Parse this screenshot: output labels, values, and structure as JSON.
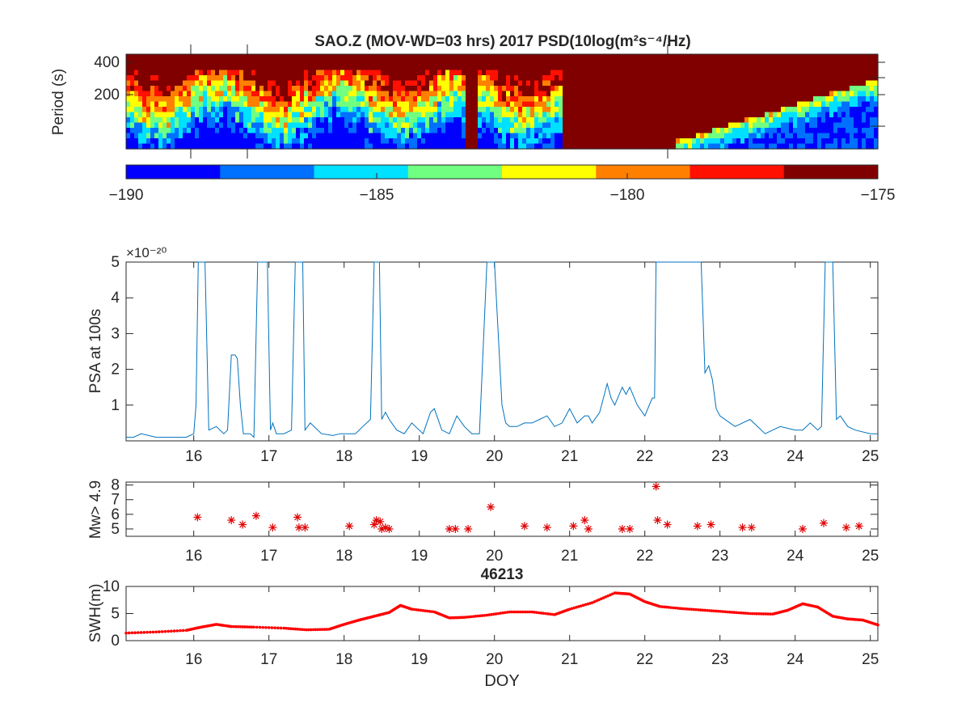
{
  "figure": {
    "colors": {
      "axis": "#262626",
      "psa_line": "#0072bd",
      "marker": "#e00000",
      "swh": "#ff0000",
      "spec_top": "#800000"
    },
    "jet_colors": [
      "#0000ff",
      "#0070ff",
      "#00e0ff",
      "#70ff80",
      "#ffff00",
      "#ff8000",
      "#ff1000",
      "#800000"
    ]
  },
  "chart_data": [
    {
      "id": "spectrogram",
      "type": "heatmap",
      "title": "SAO.Z (MOV-WD=03 hrs) 2017 PSD(10log(m²s⁻⁴/Hz)",
      "ylabel": "Period (s)",
      "yticks": [
        200,
        400
      ],
      "xlim": [
        15.1,
        25.1
      ],
      "color_range": [
        -190,
        -175
      ],
      "colorbar_ticks": [
        -190,
        -185,
        -180,
        -175
      ],
      "colormap": "jet-8-levels",
      "description_regions": [
        {
          "from": 15.1,
          "to": 19.6,
          "state": "mixed"
        },
        {
          "from": 19.6,
          "to": 19.8,
          "state": "high"
        },
        {
          "from": 19.8,
          "to": 20.9,
          "state": "mixed"
        },
        {
          "from": 20.9,
          "to": 22.4,
          "state": "high"
        },
        {
          "from": 22.4,
          "to": 25.1,
          "state": "rising-low"
        }
      ]
    },
    {
      "id": "psa",
      "type": "line",
      "ylabel": "PSA at 100s",
      "exponent_label": "×10⁻²⁰",
      "xlim": [
        15.1,
        25.1
      ],
      "ylim": [
        0,
        5
      ],
      "yticks": [
        1,
        2,
        3,
        4,
        5
      ],
      "xticks": [
        16,
        17,
        18,
        19,
        20,
        21,
        22,
        23,
        24,
        25
      ],
      "x": [
        15.1,
        15.2,
        15.3,
        15.5,
        15.7,
        15.9,
        16.0,
        16.03,
        16.06,
        16.1,
        16.15,
        16.2,
        16.3,
        16.4,
        16.45,
        16.5,
        16.55,
        16.58,
        16.62,
        16.66,
        16.7,
        16.75,
        16.8,
        16.85,
        16.88,
        16.92,
        16.98,
        17.02,
        17.05,
        17.1,
        17.2,
        17.3,
        17.35,
        17.4,
        17.45,
        17.48,
        17.55,
        17.7,
        17.85,
        17.95,
        18.05,
        18.15,
        18.25,
        18.35,
        18.4,
        18.43,
        18.47,
        18.5,
        18.55,
        18.6,
        18.7,
        18.8,
        18.9,
        18.95,
        19.05,
        19.15,
        19.2,
        19.3,
        19.4,
        19.5,
        19.6,
        19.7,
        19.8,
        19.9,
        19.95,
        20.0,
        20.1,
        20.15,
        20.2,
        20.3,
        20.4,
        20.5,
        20.6,
        20.7,
        20.8,
        20.9,
        21.0,
        21.1,
        21.2,
        21.25,
        21.3,
        21.4,
        21.5,
        21.55,
        21.6,
        21.7,
        21.75,
        21.8,
        21.9,
        22.0,
        22.1,
        22.13,
        22.15,
        22.2,
        22.4,
        22.6,
        22.75,
        22.8,
        22.85,
        22.9,
        22.95,
        23.0,
        23.2,
        23.4,
        23.5,
        23.6,
        23.8,
        24.0,
        24.1,
        24.2,
        24.3,
        24.35,
        24.4,
        24.45,
        24.5,
        24.55,
        24.6,
        24.7,
        24.8,
        25.0,
        25.1
      ],
      "values": [
        0.1,
        0.1,
        0.2,
        0.1,
        0.1,
        0.1,
        0.2,
        1.0,
        5,
        5,
        5,
        0.3,
        0.4,
        0.2,
        0.3,
        2.4,
        2.4,
        2.3,
        1.0,
        0.2,
        0.2,
        0.2,
        0.1,
        5,
        5,
        5,
        5,
        0.3,
        0.5,
        0.2,
        0.2,
        0.3,
        5,
        5,
        5,
        0.3,
        0.5,
        0.2,
        0.15,
        0.2,
        0.2,
        0.2,
        0.4,
        0.6,
        5,
        5,
        5,
        0.6,
        0.8,
        0.6,
        0.3,
        0.2,
        0.5,
        0.4,
        0.2,
        0.8,
        0.9,
        0.3,
        0.2,
        0.7,
        0.4,
        0.2,
        0.2,
        5,
        5,
        5,
        1.0,
        0.5,
        0.4,
        0.4,
        0.5,
        0.5,
        0.6,
        0.7,
        0.4,
        0.5,
        0.9,
        0.5,
        0.7,
        0.7,
        0.5,
        0.8,
        1.6,
        1.2,
        1.0,
        1.5,
        1.3,
        1.5,
        1.0,
        0.7,
        1.2,
        1.2,
        5,
        5,
        5,
        5,
        5,
        1.9,
        2.1,
        1.7,
        0.9,
        0.7,
        0.4,
        0.6,
        0.4,
        0.2,
        0.4,
        0.3,
        0.3,
        0.5,
        0.3,
        0.4,
        5,
        5,
        5,
        0.6,
        0.7,
        0.4,
        0.3,
        0.2,
        0.2
      ]
    },
    {
      "id": "earthquakes",
      "type": "scatter",
      "ylabel": "Mw> 4.9",
      "xlim": [
        15.1,
        25.1
      ],
      "ylim": [
        4.5,
        8.2
      ],
      "yticks": [
        5,
        6,
        7,
        8
      ],
      "xticks": [
        16,
        17,
        18,
        19,
        20,
        21,
        22,
        23,
        24,
        25
      ],
      "x": [
        16.05,
        16.5,
        16.65,
        16.83,
        17.05,
        17.38,
        17.4,
        17.48,
        18.07,
        18.4,
        18.43,
        18.48,
        18.5,
        18.55,
        18.6,
        19.4,
        19.48,
        19.65,
        19.95,
        20.4,
        20.7,
        21.05,
        21.2,
        21.25,
        21.7,
        21.8,
        22.15,
        22.17,
        22.3,
        22.7,
        22.88,
        23.3,
        23.42,
        24.1,
        24.38,
        24.68,
        24.85
      ],
      "values": [
        5.8,
        5.6,
        5.3,
        5.9,
        5.1,
        5.8,
        5.1,
        5.1,
        5.2,
        5.3,
        5.6,
        5.5,
        5.0,
        5.1,
        5.0,
        5.0,
        5.0,
        5.0,
        6.5,
        5.2,
        5.1,
        5.2,
        5.6,
        5.0,
        5.0,
        5.0,
        7.9,
        5.6,
        5.3,
        5.2,
        5.3,
        5.1,
        5.1,
        5.0,
        5.4,
        5.1,
        5.2
      ]
    },
    {
      "id": "swh",
      "type": "line",
      "title": "46213",
      "ylabel": "SWH(m)",
      "xlabel": "DOY",
      "xlim": [
        15.1,
        25.1
      ],
      "ylim": [
        0,
        10
      ],
      "yticks": [
        0,
        5,
        10
      ],
      "xticks": [
        16,
        17,
        18,
        19,
        20,
        21,
        22,
        23,
        24,
        25
      ],
      "x": [
        15.1,
        15.5,
        15.9,
        16.1,
        16.3,
        16.5,
        16.8,
        17.2,
        17.5,
        17.8,
        18.0,
        18.2,
        18.4,
        18.6,
        18.75,
        18.9,
        19.2,
        19.4,
        19.6,
        19.9,
        20.2,
        20.5,
        20.8,
        21.0,
        21.3,
        21.6,
        21.8,
        22.0,
        22.2,
        22.5,
        22.8,
        23.1,
        23.4,
        23.7,
        23.9,
        24.1,
        24.3,
        24.5,
        24.7,
        24.9,
        25.1
      ],
      "values": [
        1.4,
        1.6,
        1.9,
        2.5,
        3.0,
        2.6,
        2.5,
        2.3,
        2.0,
        2.1,
        3.0,
        3.8,
        4.5,
        5.2,
        6.5,
        5.8,
        5.3,
        4.2,
        4.3,
        4.7,
        5.3,
        5.3,
        4.8,
        5.8,
        7.0,
        8.8,
        8.6,
        7.2,
        6.3,
        5.9,
        5.6,
        5.3,
        5.0,
        4.9,
        5.6,
        6.8,
        6.2,
        4.5,
        4.0,
        3.8,
        2.9
      ]
    }
  ]
}
